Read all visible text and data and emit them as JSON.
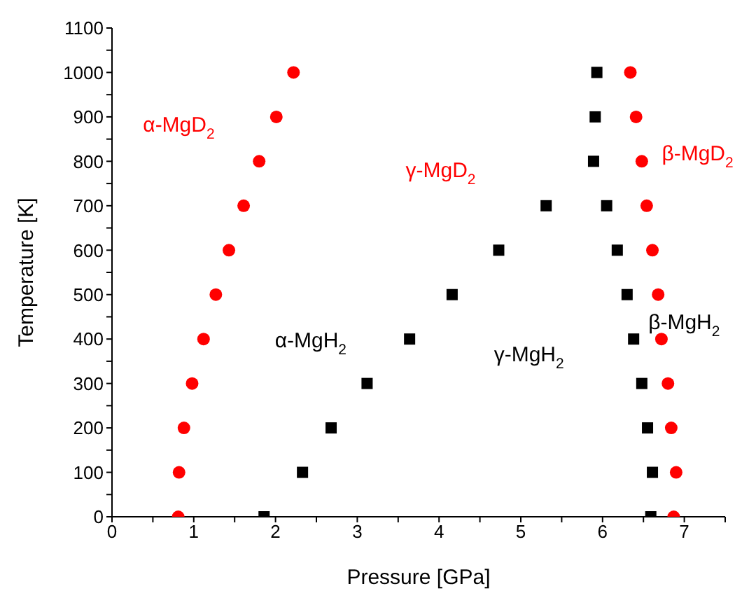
{
  "chart_data": {
    "type": "scatter",
    "xlabel": "Pressure [GPa]",
    "ylabel": "Temperature [K]",
    "xlim": [
      0,
      7.5
    ],
    "ylim": [
      0,
      1100
    ],
    "xticks": [
      0,
      {
        "value": 0.5,
        "label": null
      },
      1,
      {
        "value": 1.5,
        "label": null
      },
      2,
      {
        "value": 2.5,
        "label": null
      },
      3,
      {
        "value": 3.5,
        "label": null
      },
      4,
      {
        "value": 4.5,
        "label": null
      },
      5,
      {
        "value": 5.5,
        "label": null
      },
      6,
      {
        "value": 6.5,
        "label": null
      },
      7,
      {
        "value": 7.5,
        "label": null
      }
    ],
    "yticks": [
      0,
      {
        "value": 50,
        "label": null
      },
      100,
      {
        "value": 150,
        "label": null
      },
      200,
      {
        "value": 250,
        "label": null
      },
      300,
      {
        "value": 350,
        "label": null
      },
      400,
      {
        "value": 450,
        "label": null
      },
      500,
      {
        "value": 550,
        "label": null
      },
      600,
      {
        "value": 650,
        "label": null
      },
      700,
      {
        "value": 750,
        "label": null
      },
      800,
      {
        "value": 850,
        "label": null
      },
      900,
      {
        "value": 950,
        "label": null
      },
      1000,
      {
        "value": 1050,
        "label": null
      },
      1100
    ],
    "grid": false,
    "legend": false,
    "series": [
      {
        "color": "#ff0000",
        "marker": "circle",
        "x": [
          0.81,
          0.82,
          0.88,
          0.98,
          1.12,
          1.27,
          1.43,
          1.61,
          1.8,
          2.01,
          2.22
        ],
        "values": [
          0,
          100,
          200,
          300,
          400,
          500,
          600,
          700,
          800,
          900,
          1000
        ]
      },
      {
        "color": "#000000",
        "marker": "square",
        "x": [
          1.86,
          2.33,
          2.68,
          3.12,
          3.64,
          4.16,
          4.73,
          5.31,
          5.89,
          5.91,
          5.93
        ],
        "values": [
          0,
          100,
          200,
          300,
          400,
          500,
          600,
          700,
          800,
          900,
          1000
        ]
      },
      {
        "color": "#000000",
        "marker": "square",
        "x": [
          6.59,
          6.61,
          6.55,
          6.48,
          6.38,
          6.3,
          6.18,
          6.05
        ],
        "values": [
          0,
          100,
          200,
          300,
          400,
          500,
          600,
          700
        ]
      },
      {
        "color": "#ff0000",
        "marker": "circle",
        "x": [
          6.87,
          6.9,
          6.84,
          6.8,
          6.72,
          6.68,
          6.61,
          6.54,
          6.48,
          6.41,
          6.34
        ],
        "values": [
          0,
          100,
          200,
          300,
          400,
          500,
          600,
          700,
          800,
          900,
          1000
        ]
      }
    ],
    "annotations": [
      "α-MgD$_{2}$",
      "γ-MgD$_{2}$",
      "β-MgD$_{2}$",
      "α-MgH$_{2}$",
      "γ-MgH$_{2}$",
      "β-MgH$_{2}$"
    ]
  }
}
